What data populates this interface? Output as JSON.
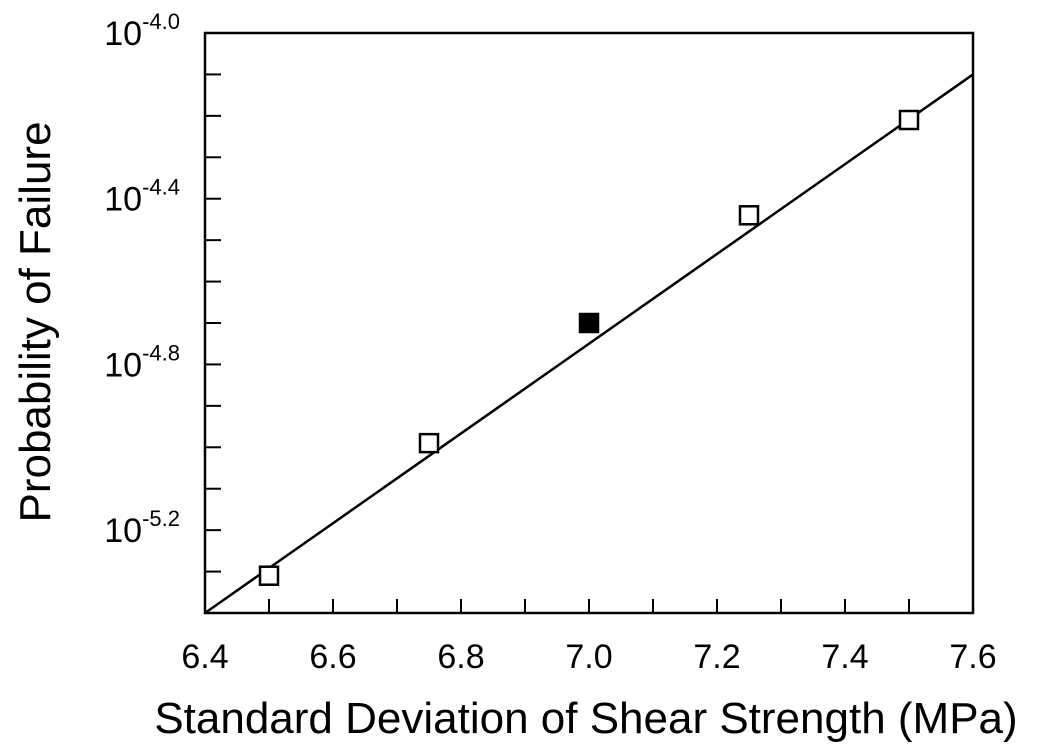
{
  "chart_data": {
    "type": "scatter",
    "title": "",
    "xlabel": "Standard Deviation of Shear Strength (MPa)",
    "ylabel": "Probability of Failure",
    "xlim": [
      6.4,
      7.6
    ],
    "ylim_log10": [
      -5.4,
      -4.0
    ],
    "y_scale": "log",
    "grid": false,
    "x_ticks": [
      6.4,
      6.5,
      6.6,
      6.7,
      6.8,
      6.9,
      7.0,
      7.1,
      7.2,
      7.3,
      7.4,
      7.5,
      7.6
    ],
    "x_tick_labels": [
      "6.4",
      "6.6",
      "6.8",
      "7.0",
      "7.2",
      "7.4",
      "7.6"
    ],
    "x_tick_label_values": [
      6.4,
      6.6,
      6.8,
      7.0,
      7.2,
      7.4,
      7.6
    ],
    "y_ticks_log10": [
      -5.4,
      -5.3,
      -5.2,
      -5.1,
      -5.0,
      -4.9,
      -4.8,
      -4.7,
      -4.6,
      -4.5,
      -4.4,
      -4.3,
      -4.2,
      -4.1,
      -4.0
    ],
    "y_tick_labels": [
      {
        "base": "10",
        "exp": "-4.0",
        "log10": -4.0
      },
      {
        "base": "10",
        "exp": "-4.4",
        "log10": -4.4
      },
      {
        "base": "10",
        "exp": "-4.8",
        "log10": -4.8
      },
      {
        "base": "10",
        "exp": "-5.2",
        "log10": -5.2
      }
    ],
    "series": [
      {
        "marker": "open-square",
        "x": [
          6.5,
          6.75,
          7.25,
          7.5
        ],
        "y_log10": [
          -5.31,
          -4.99,
          -4.44,
          -4.21
        ]
      },
      {
        "marker": "filled-square",
        "x": [
          7.0
        ],
        "y_log10": [
          -4.7
        ]
      }
    ],
    "fit_line": {
      "x": [
        6.4,
        7.6
      ],
      "y_log10": [
        -5.4,
        -4.1
      ]
    }
  }
}
